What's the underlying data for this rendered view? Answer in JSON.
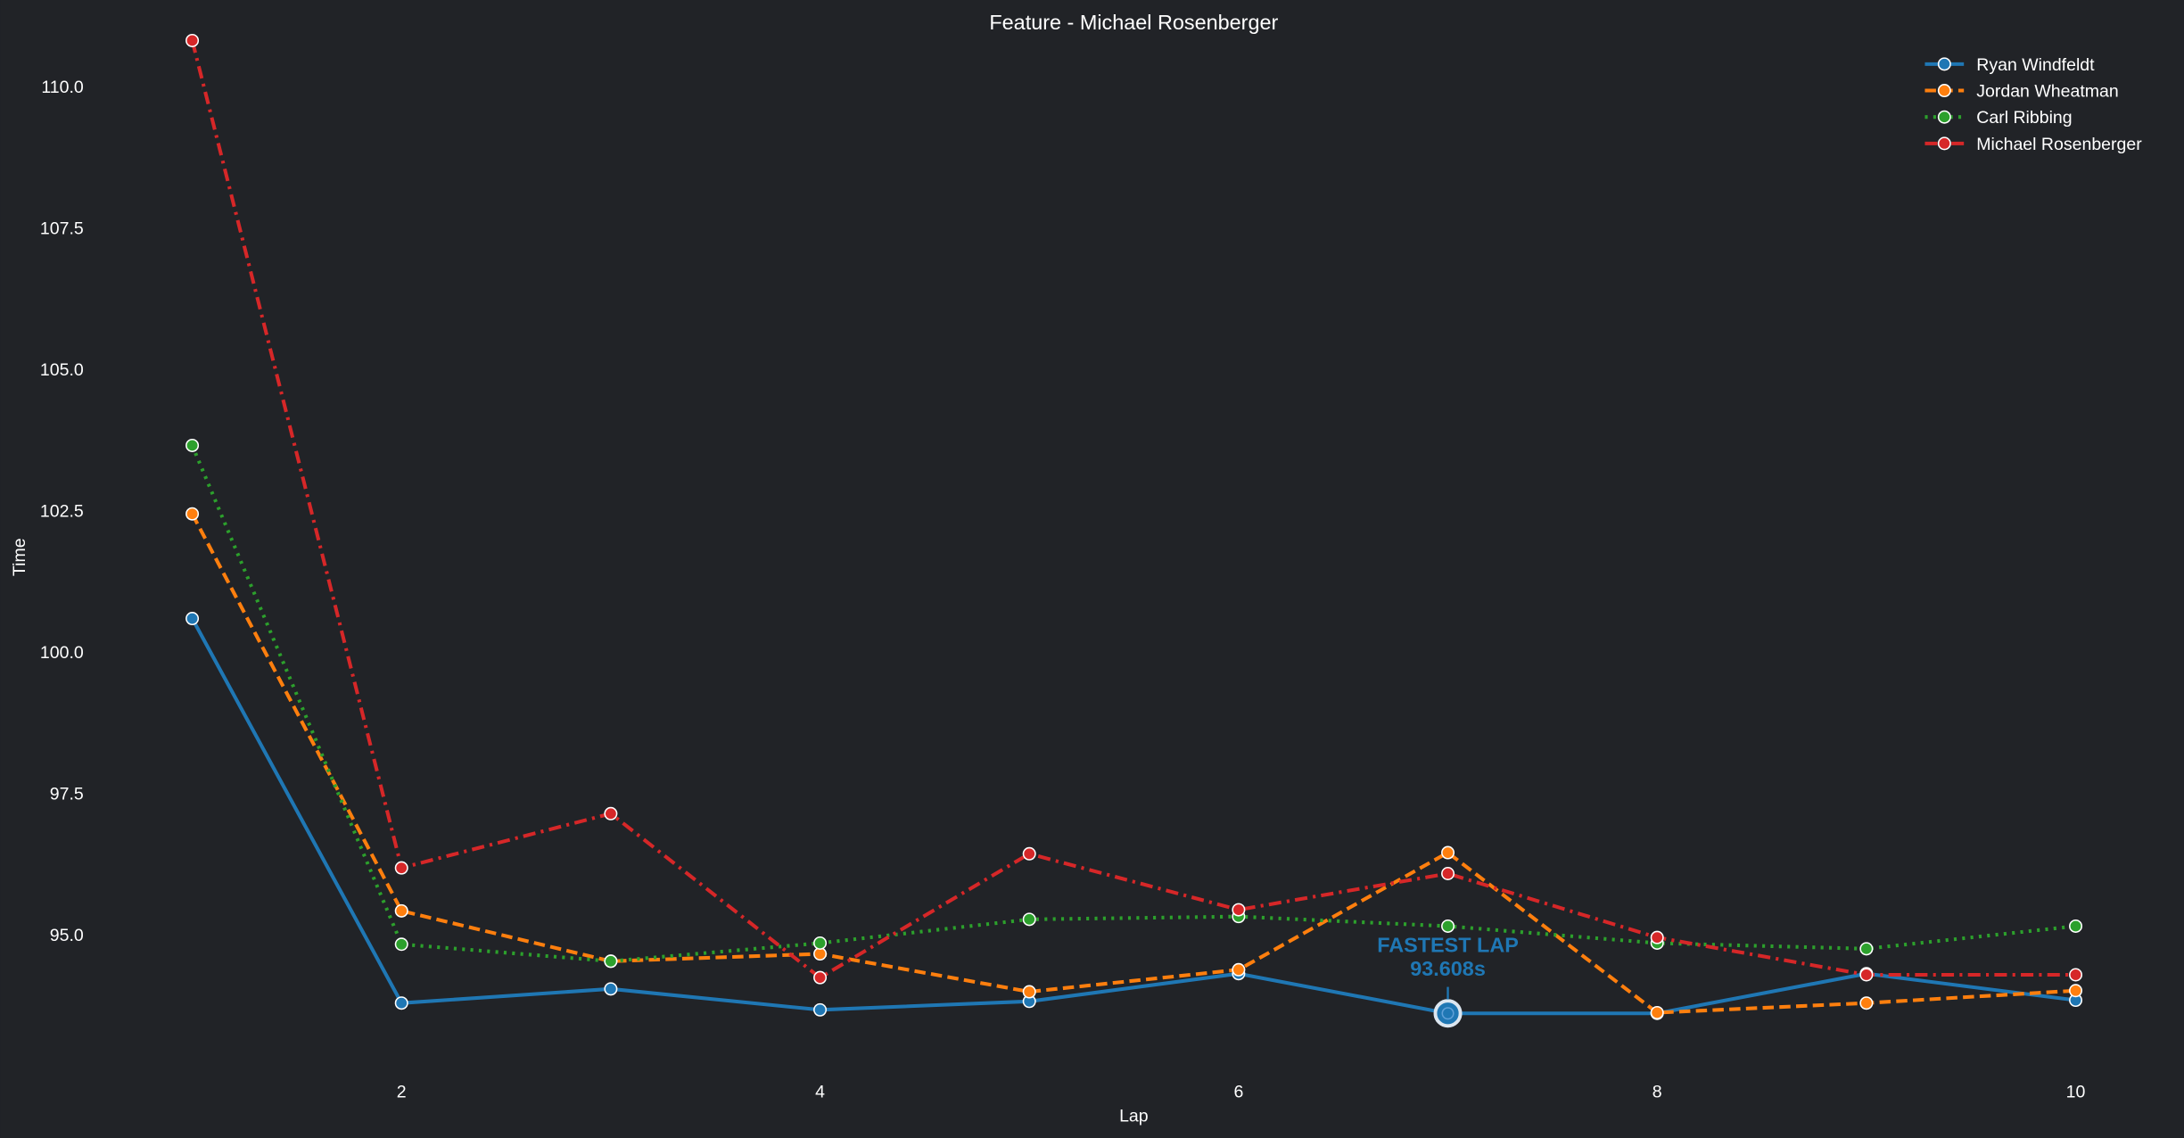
{
  "chart_data": {
    "type": "line",
    "title": "Feature - Michael Rosenberger",
    "xlabel": "Lap",
    "ylabel": "Time",
    "x": [
      1,
      2,
      3,
      4,
      5,
      6,
      7,
      8,
      9,
      10
    ],
    "xticks": [
      "2",
      "4",
      "6",
      "8",
      "10"
    ],
    "xtick_values": [
      2,
      4,
      6,
      8,
      10
    ],
    "yticks": [
      "95.0",
      "97.5",
      "100.0",
      "102.5",
      "105.0",
      "107.5",
      "110.0"
    ],
    "ytick_values": [
      95,
      97.5,
      100,
      102.5,
      105,
      107.5,
      110
    ],
    "xlim": [
      0.08,
      10.52
    ],
    "ylim": [
      92.56,
      111.53
    ],
    "grid": false,
    "legend_position": "top-right",
    "series": [
      {
        "name": "Ryan Windfeldt",
        "color": "#1f77b4",
        "style": "solid",
        "values": [
          100.59,
          93.79,
          94.04,
          93.67,
          93.82,
          94.31,
          93.608,
          93.608,
          94.31,
          93.84
        ]
      },
      {
        "name": "Jordan Wheatman",
        "color": "#ff7f0e",
        "style": "dashed",
        "values": [
          102.44,
          95.42,
          94.53,
          94.66,
          93.99,
          94.38,
          96.45,
          93.62,
          93.79,
          94.01
        ]
      },
      {
        "name": "Carl Ribbing",
        "color": "#2ca02c",
        "style": "dotted",
        "values": [
          103.65,
          94.83,
          94.53,
          94.85,
          95.27,
          95.32,
          95.15,
          94.85,
          94.75,
          95.15
        ]
      },
      {
        "name": "Michael Rosenberger",
        "color": "#d62728",
        "style": "dashdot",
        "values": [
          110.81,
          96.18,
          97.14,
          94.24,
          96.43,
          95.44,
          96.08,
          94.95,
          94.29,
          94.29
        ]
      }
    ],
    "annotation": {
      "title": "FASTEST LAP",
      "value_label": "93.608s",
      "lap": 7,
      "time": 93.608,
      "color": "#1f77b4"
    }
  }
}
